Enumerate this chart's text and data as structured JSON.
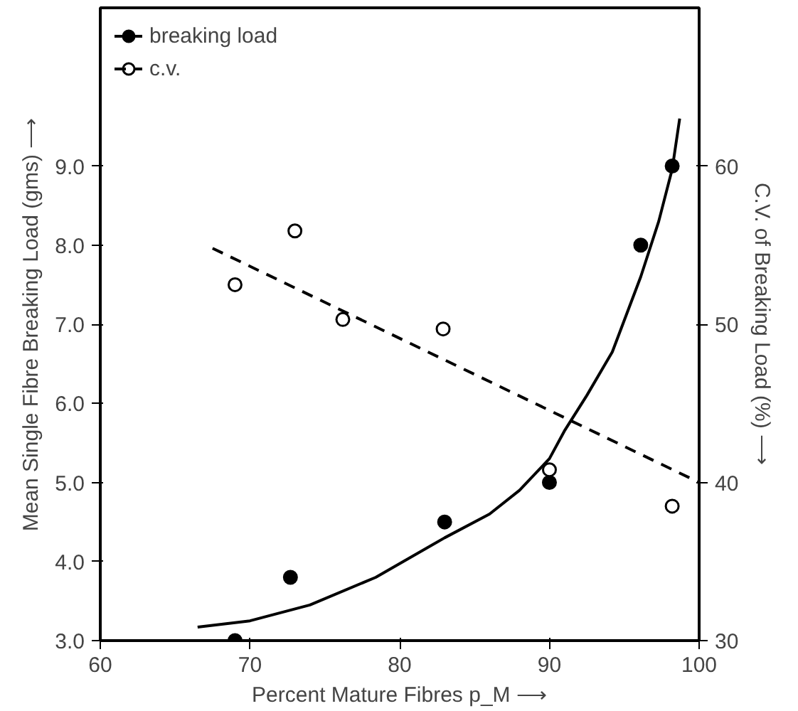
{
  "chart_data": {
    "type": "scatter",
    "xlabel": "Percent Mature Fibres p_M ⟶",
    "ylabel": "Mean Single Fibre Breaking Load (gms) ⟶",
    "y2label": "C.V. of Breaking Load (%) ⟶",
    "xlim": [
      60,
      100
    ],
    "xticks": [
      60,
      70,
      80,
      90,
      100
    ],
    "ylim": [
      3,
      11
    ],
    "yticks": [
      {
        "value": 3,
        "label": "3.0"
      },
      {
        "value": 4,
        "label": "4.0"
      },
      {
        "value": 5,
        "label": "5.0"
      },
      {
        "value": 6,
        "label": "6.0"
      },
      {
        "value": 7,
        "label": "7.0"
      },
      {
        "value": 8,
        "label": "8.0"
      },
      {
        "value": 9,
        "label": "9.0"
      }
    ],
    "y2lim": [
      30,
      70
    ],
    "y2ticks": [
      30,
      40,
      50,
      60
    ],
    "grid": false,
    "legend": "top left",
    "series": [
      {
        "name": "breaking load",
        "marker": "circle",
        "color": "#000000",
        "x": [
          69,
          72.7,
          83,
          90,
          96.1,
          98.2
        ],
        "values": [
          3.0,
          3.8,
          4.5,
          5.0,
          8.0,
          9.0
        ]
      },
      {
        "type": "line",
        "line_style": "solid",
        "color": "#000000",
        "x": [
          66.5,
          70,
          74,
          78.4,
          83,
          86,
          88,
          90,
          91,
          92.5,
          94.2,
          96.1,
          97.3,
          98.2,
          98.7
        ],
        "values": [
          3.17,
          3.25,
          3.45,
          3.8,
          4.3,
          4.6,
          4.9,
          5.3,
          5.65,
          6.1,
          6.65,
          7.6,
          8.3,
          8.96,
          9.6
        ]
      },
      {
        "name": "c.v.",
        "marker": "circle",
        "color": "#ffffff",
        "axis": "y2",
        "x": [
          69,
          73,
          76.2,
          82.9,
          90,
          98.2
        ],
        "values": [
          52.5,
          55.9,
          50.3,
          49.7,
          40.8,
          38.5
        ]
      },
      {
        "type": "line",
        "line_style": "dashed",
        "color": "#000000",
        "axis": "y2",
        "x": [
          67.5,
          100
        ],
        "values": [
          54.8,
          40
        ]
      }
    ]
  }
}
